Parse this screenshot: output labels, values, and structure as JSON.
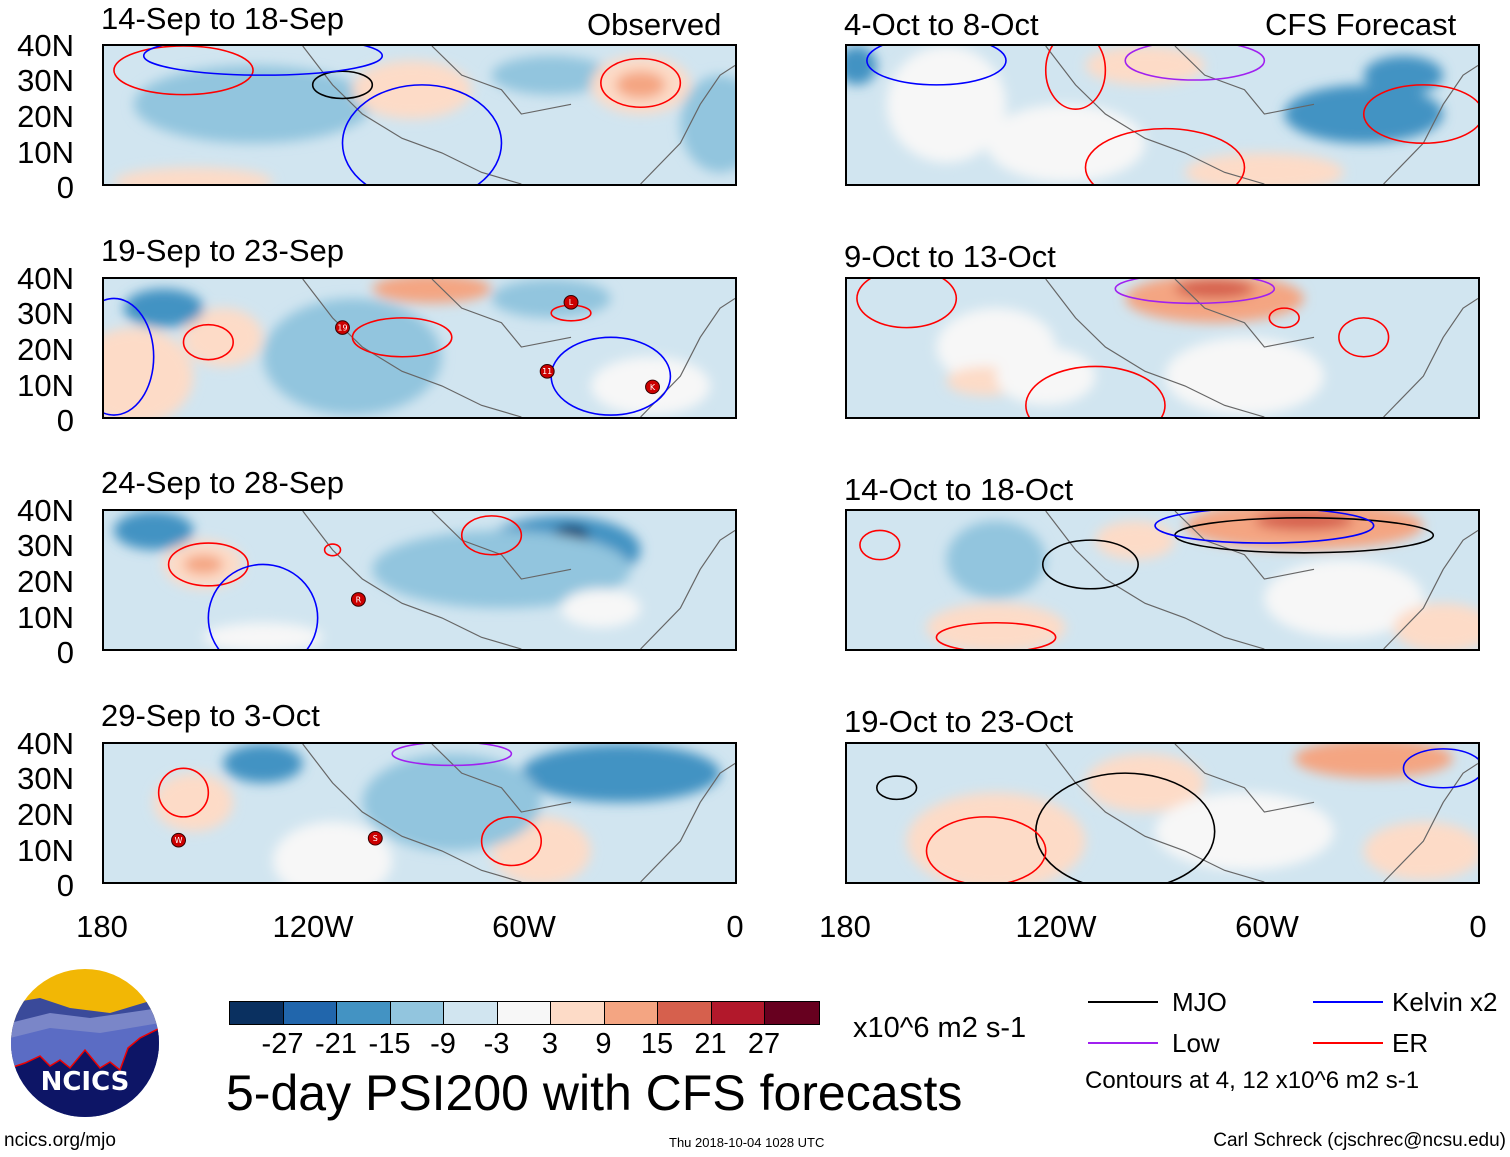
{
  "header": {
    "observed_label": "Observed",
    "forecast_label": "CFS Forecast"
  },
  "panels": {
    "observed": [
      "14-Sep to 18-Sep",
      "19-Sep to 23-Sep",
      "24-Sep to 28-Sep",
      "29-Sep to 3-Oct"
    ],
    "forecast": [
      "4-Oct to 8-Oct",
      "9-Oct to 13-Oct",
      "14-Oct to 18-Oct",
      "19-Oct to 23-Oct"
    ]
  },
  "axes": {
    "lat_labels": [
      "40N",
      "30N",
      "20N",
      "10N",
      "0"
    ],
    "lon_labels": [
      "180",
      "120W",
      "60W",
      "0"
    ]
  },
  "storm_labels": {
    "p1": [
      "19",
      "L",
      "11",
      "K"
    ],
    "p2": [
      "R"
    ],
    "p3": [
      "W",
      "S"
    ]
  },
  "colorbar": {
    "colors": [
      "#0a3060",
      "#2166ac",
      "#4393c3",
      "#92c5de",
      "#d1e5f0",
      "#f7f7f7",
      "#fddbc7",
      "#f4a582",
      "#d6604d",
      "#b2182b",
      "#67001f"
    ],
    "labels": [
      "-27",
      "-21",
      "-15",
      "-9",
      "-3",
      "3",
      "9",
      "15",
      "21",
      "27"
    ],
    "units": "x10^6 m2 s-1"
  },
  "title": "5-day PSI200 with CFS forecasts",
  "timestamp": "Thu 2018-10-04 1028 UTC",
  "site": "ncics.org/mjo",
  "credit": "Carl Schreck (cjschrec@ncsu.edu)",
  "logo_text": "NCICS",
  "legend": {
    "items": [
      {
        "label": "MJO",
        "color": "#000000"
      },
      {
        "label": "Kelvin x2",
        "color": "#0000ff"
      },
      {
        "label": "Low",
        "color": "#a020f0"
      },
      {
        "label": "ER",
        "color": "#ff0000"
      }
    ],
    "contours_note": "Contours at 4, 12 x10^6 m2 s-1"
  }
}
